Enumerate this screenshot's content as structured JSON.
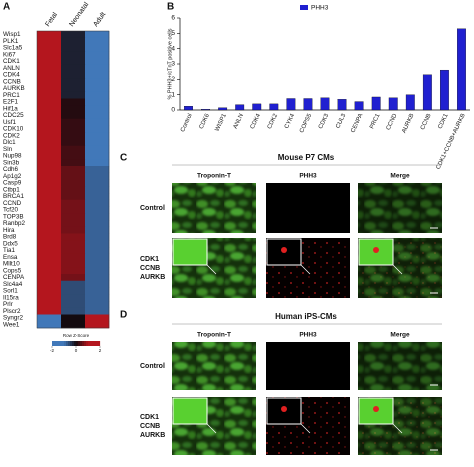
{
  "panel_labels": [
    "A",
    "B",
    "C",
    "D"
  ],
  "heatmap": {
    "columns": [
      "Fetal",
      "Neonatal",
      "Adult"
    ],
    "genes": [
      "Wisp1",
      "PLK1",
      "Slc1a5",
      "Ki67",
      "CDK1",
      "ANLN",
      "CDK4",
      "CCNB",
      "AURKB",
      "PRC1",
      "E2F1",
      "Hif1a",
      "CDC25",
      "Usf1",
      "CDK10",
      "CDK2",
      "Dlc1",
      "Sln",
      "Nup98",
      "Sin3b",
      "Cdh6",
      "Ap1g2",
      "Casp9",
      "Ctbp1",
      "BRCA1",
      "CCND",
      "Tcf20",
      "TOP3B",
      "Ranbp2",
      "Hira",
      "Brd8",
      "Ddx5",
      "Tia1",
      "Ensa",
      "Mllt10",
      "Cops5",
      "CENPA",
      "Slc4a4",
      "Sorl1",
      "Il15ra",
      "Prlr",
      "Plscr2",
      "Syngr2",
      "Wee1"
    ],
    "values": [
      [
        1,
        -0.2,
        -1
      ],
      [
        1,
        -0.2,
        -1
      ],
      [
        1,
        -0.2,
        -1
      ],
      [
        1,
        -0.2,
        -1
      ],
      [
        1,
        -0.2,
        -1
      ],
      [
        1,
        -0.2,
        -1
      ],
      [
        1,
        -0.2,
        -1
      ],
      [
        1,
        -0.2,
        -1
      ],
      [
        1,
        -0.2,
        -1
      ],
      [
        1,
        -0.2,
        -1
      ],
      [
        1,
        0.1,
        -1
      ],
      [
        1,
        0.1,
        -1
      ],
      [
        1,
        0.1,
        -1
      ],
      [
        1,
        0.2,
        -1
      ],
      [
        1,
        0.2,
        -1
      ],
      [
        1,
        0.2,
        -1
      ],
      [
        1,
        0.2,
        -1
      ],
      [
        1,
        0.3,
        -1
      ],
      [
        1,
        0.3,
        -1
      ],
      [
        1,
        0.3,
        -1
      ],
      [
        1,
        0.5,
        -0.8
      ],
      [
        1,
        0.5,
        -0.8
      ],
      [
        1,
        0.5,
        -0.8
      ],
      [
        1,
        0.5,
        -0.8
      ],
      [
        1,
        0.5,
        -0.8
      ],
      [
        1,
        0.6,
        -0.8
      ],
      [
        1,
        0.6,
        -0.8
      ],
      [
        1,
        0.6,
        -0.8
      ],
      [
        1,
        0.6,
        -0.8
      ],
      [
        1,
        0.6,
        -0.8
      ],
      [
        1,
        0.7,
        -0.8
      ],
      [
        1,
        0.7,
        -0.8
      ],
      [
        1,
        0.7,
        -0.8
      ],
      [
        1,
        0.7,
        -0.8
      ],
      [
        1,
        0.7,
        -0.8
      ],
      [
        1,
        0.7,
        -0.8
      ],
      [
        1,
        0.6,
        -0.8
      ],
      [
        1,
        -0.6,
        -0.8
      ],
      [
        1,
        -0.6,
        -0.8
      ],
      [
        1,
        -0.6,
        -0.8
      ],
      [
        1,
        -0.6,
        -0.8
      ],
      [
        1,
        -0.6,
        -0.8
      ],
      [
        -1,
        0,
        1
      ],
      [
        -1,
        0,
        1
      ]
    ],
    "legend_title": "Row Z-Score",
    "legend_ticks": [
      -2,
      0,
      2
    ]
  },
  "chart_data": {
    "type": "bar",
    "ylabel": "% PHH3+/cTnT positive cells",
    "categories": [
      "Control",
      "CDK6",
      "WISP1",
      "ANLN",
      "CDK4",
      "CDK2",
      "CYK4",
      "COPS5",
      "CDK3",
      "CUL3",
      "CENPA",
      "PRC1",
      "CCND",
      "AURKB",
      "CCNB",
      "CDK1",
      "CDK1+CCNB+AURKB"
    ],
    "series": [
      {
        "name": "PHH3",
        "color": "#2020d0",
        "values": [
          0.25,
          0.05,
          0.15,
          0.35,
          0.4,
          0.4,
          0.75,
          0.75,
          0.8,
          0.7,
          0.55,
          0.85,
          0.8,
          1.0,
          2.3,
          2.6,
          5.3
        ]
      }
    ],
    "ylim": [
      0,
      6
    ],
    "yticks": [
      0,
      1,
      2,
      3,
      4,
      5,
      6
    ]
  },
  "panel_c": {
    "title": "Mouse P7 CMs",
    "columns": [
      "Troponin-T",
      "PHH3",
      "Merge"
    ],
    "rows": [
      [
        "Control"
      ],
      [
        "CDK1",
        "CCNB",
        "AURKB"
      ]
    ]
  },
  "panel_d": {
    "title": "Human iPS-CMs",
    "columns": [
      "Troponin-T",
      "PHH3",
      "Merge"
    ],
    "rows": [
      [
        "Control"
      ],
      [
        "CDK1",
        "CCNB",
        "AURKB"
      ]
    ]
  }
}
